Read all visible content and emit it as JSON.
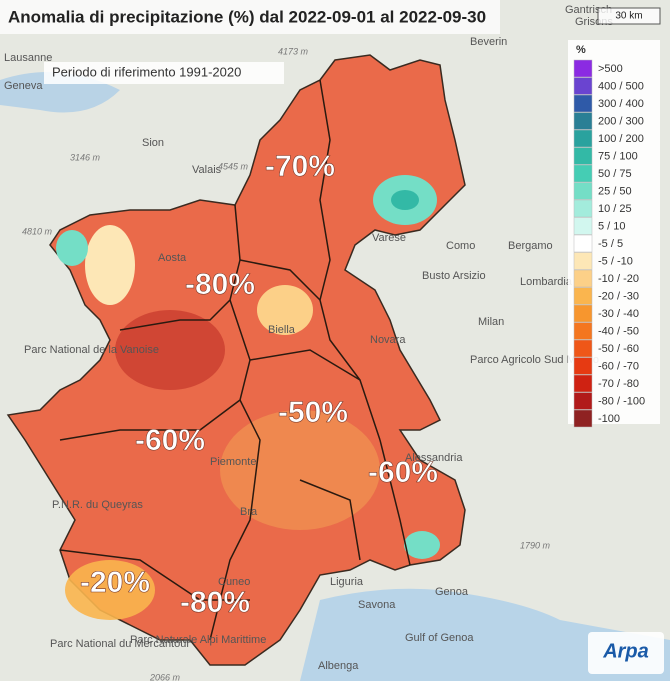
{
  "header": {
    "title": "Anomalia di precipitazione (%) dal 2022-09-01 al 2022-09-30",
    "subtitle": "Periodo di riferimento 1991-2020"
  },
  "legend": {
    "title": "%",
    "items": [
      {
        "label": ">500",
        "color": "#8b2be2"
      },
      {
        "label": "400 / 500",
        "color": "#6a44d0"
      },
      {
        "label": "300 / 400",
        "color": "#2f5aa8"
      },
      {
        "label": "200 / 300",
        "color": "#2a7f95"
      },
      {
        "label": "100 / 200",
        "color": "#2aa29e"
      },
      {
        "label": "75 / 100",
        "color": "#33b9a6"
      },
      {
        "label": "50 / 75",
        "color": "#45cdb4"
      },
      {
        "label": "25 / 50",
        "color": "#74dec6"
      },
      {
        "label": "10 / 25",
        "color": "#a3ecdc"
      },
      {
        "label": "5 / 10",
        "color": "#d2f7ef"
      },
      {
        "label": "-5 / 5",
        "color": "#ffffff"
      },
      {
        "label": "-5 / -10",
        "color": "#fde7b6"
      },
      {
        "label": "-10 / -20",
        "color": "#fcd088"
      },
      {
        "label": "-20 / -30",
        "color": "#fab54e"
      },
      {
        "label": "-30 / -40",
        "color": "#f7962e"
      },
      {
        "label": "-40 / -50",
        "color": "#f4761f"
      },
      {
        "label": "-50 / -60",
        "color": "#ef5718"
      },
      {
        "label": "-60 / -70",
        "color": "#e63a12"
      },
      {
        "label": "-70 / -80",
        "color": "#cf2212"
      },
      {
        "label": "-80 / -100",
        "color": "#b11a1a"
      },
      {
        "label": "-100",
        "color": "#8f2222"
      }
    ]
  },
  "anomaly_labels": [
    "-70%",
    "-80%",
    "-50%",
    "-60%",
    "-60%",
    "-20%",
    "-80%"
  ],
  "places": [
    "Lausanne",
    "Sion",
    "Valais",
    "Aosta",
    "Biella",
    "Novara",
    "Como",
    "Busto Arsizio",
    "Bergamo",
    "Milan",
    "Parco Agricolo Sud Milano",
    "Alessandria",
    "Piemonte",
    "Bra",
    "Cuneo",
    "Genoa",
    "Savona",
    "Albenga",
    "Gulf of Genoa",
    "Parc National de la Vanoise",
    "P.N.R. du Queyras",
    "Parc National du Mercantour",
    "Parc Naturale Alpi Marittime",
    "Gantrisch",
    "Grisons",
    "Beverin",
    "Varese",
    "Lombardia",
    "Liguria",
    "Geneva"
  ],
  "elevations": [
    "4173 m",
    "3146 m",
    "4545 m",
    "4810 m",
    "1790 m",
    "2066 m"
  ],
  "scale": "30 km",
  "logo": "Arpa"
}
